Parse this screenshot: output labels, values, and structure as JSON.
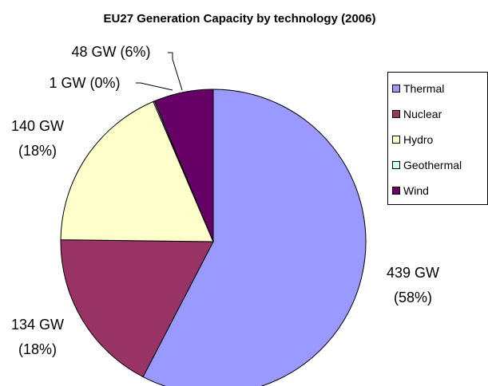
{
  "chart_data": {
    "type": "pie",
    "title": "EU27 Generation Capacity by technology (2006)",
    "categories": [
      "Thermal",
      "Nuclear",
      "Hydro",
      "Geothermal",
      "Wind"
    ],
    "values": [
      439,
      134,
      140,
      1,
      48
    ],
    "value_labels": [
      "439 GW (58%)",
      "134 GW (18%)",
      "140 GW (18%)",
      "1 GW (0%)",
      "48 GW (6%)"
    ],
    "colors": [
      "#9999ff",
      "#993366",
      "#ffffcc",
      "#ccffff",
      "#660066"
    ],
    "legend": "right"
  }
}
